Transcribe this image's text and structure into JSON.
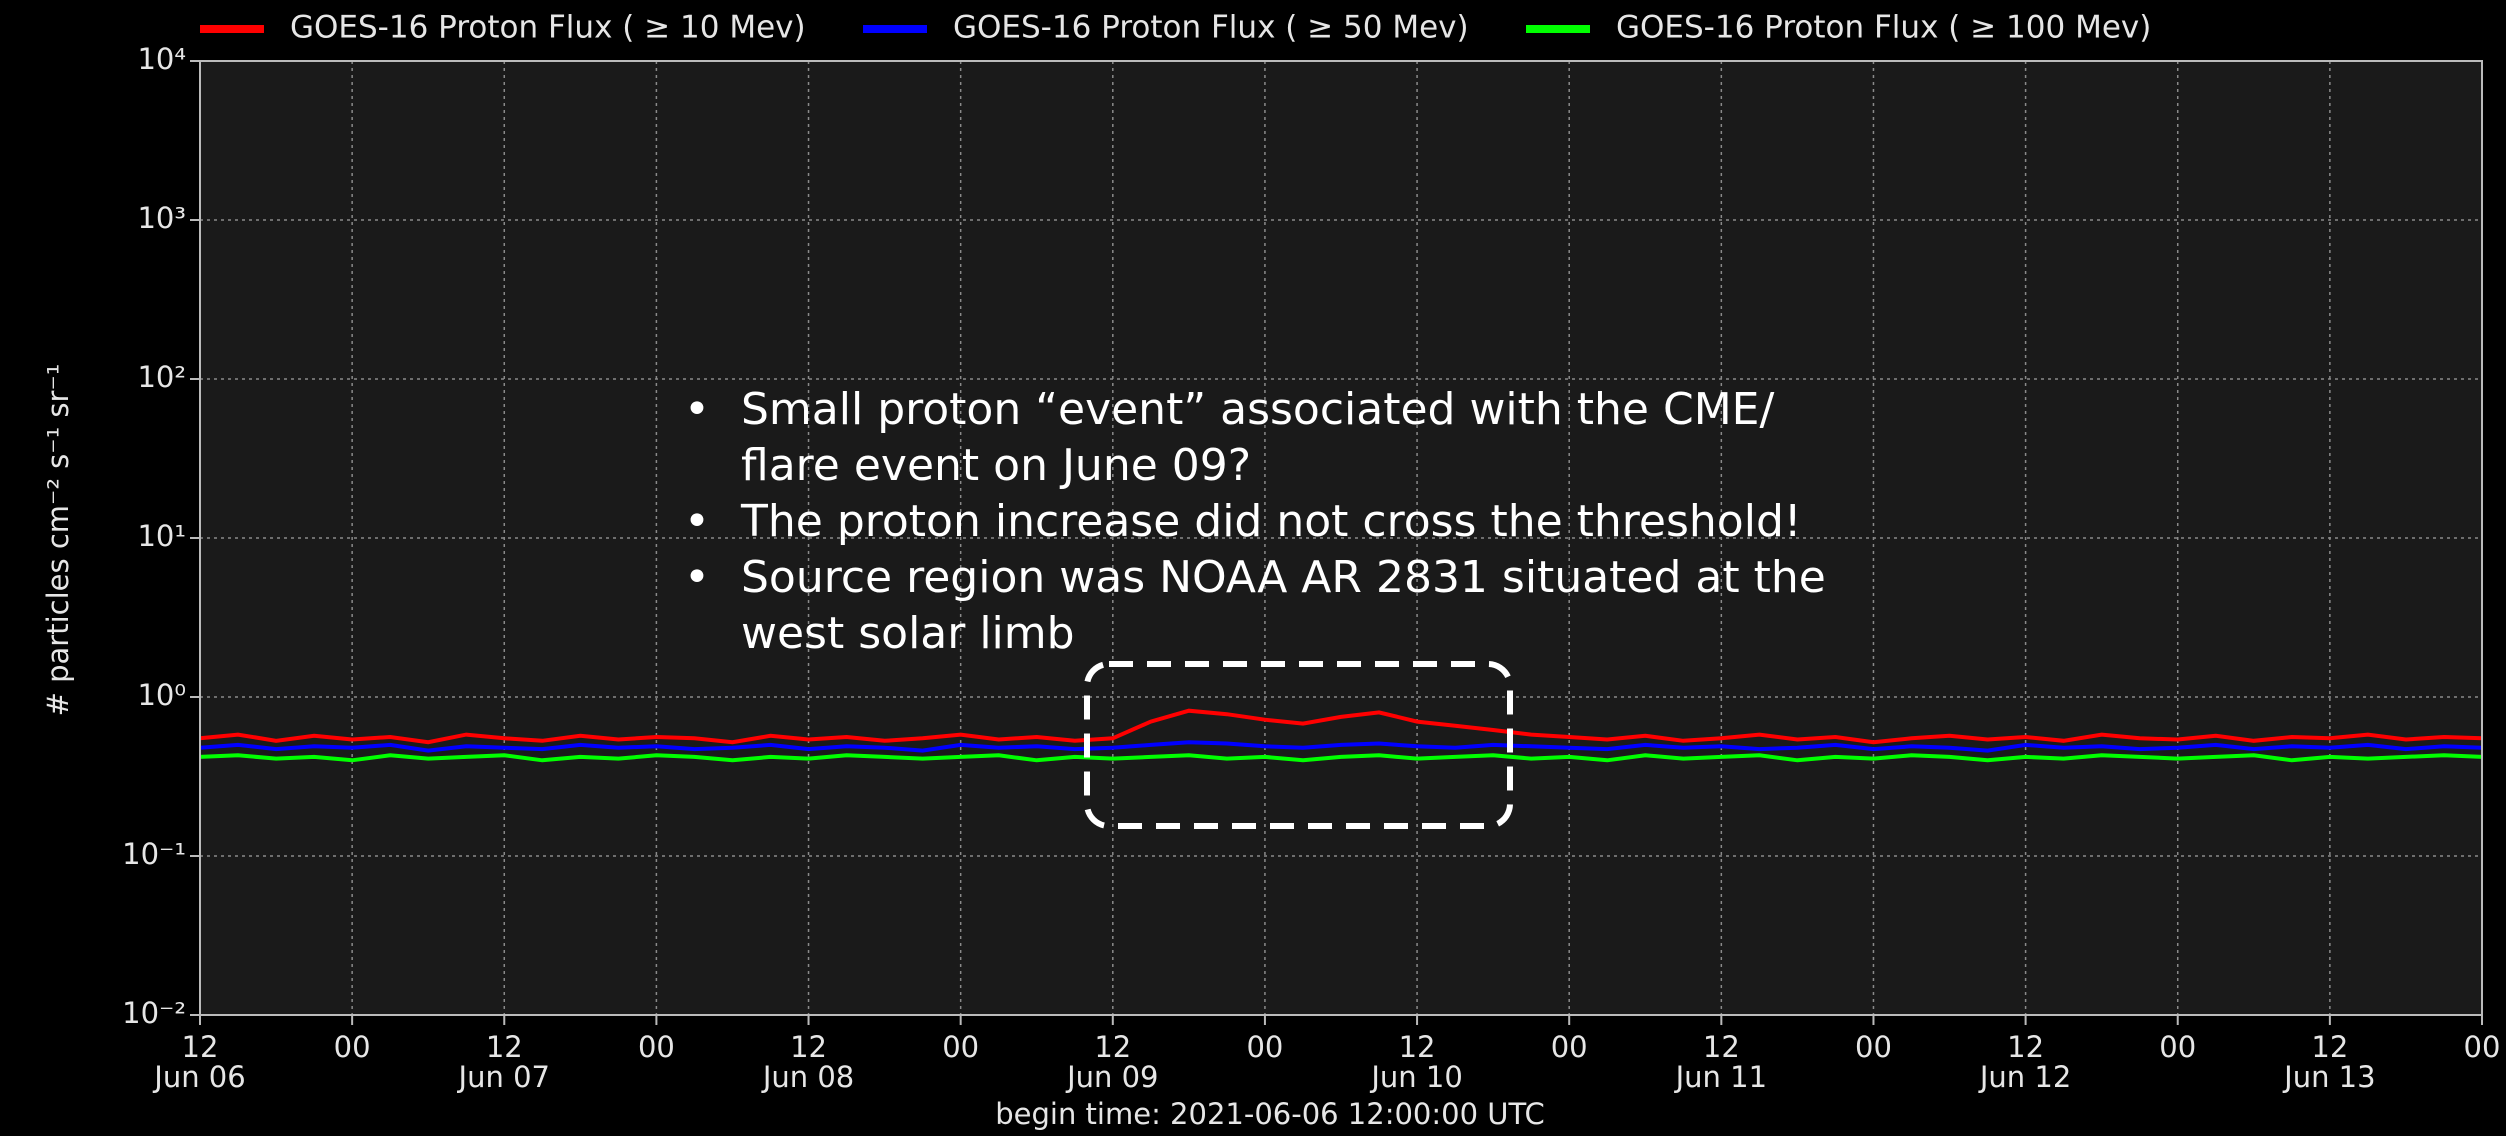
{
  "chart_data": {
    "type": "line",
    "ylabel": "# particles cm⁻² s⁻¹ sr⁻¹",
    "xlabel": "begin time: 2021-06-06 12:00:00 UTC",
    "log_y": true,
    "grid": true,
    "legend": "top",
    "ylim": [
      0.01,
      10000
    ],
    "yticks": [
      {
        "value": 10000,
        "label": "10⁴"
      },
      {
        "value": 1000,
        "label": "10³"
      },
      {
        "value": 100,
        "label": "10²"
      },
      {
        "value": 10,
        "label": "10¹"
      },
      {
        "value": 1,
        "label": "10⁰"
      },
      {
        "value": 0.1,
        "label": "10⁻¹"
      },
      {
        "value": 0.01,
        "label": "10⁻²"
      }
    ],
    "xlim": [
      "2021-06-06T12:00",
      "2021-06-14T00:00"
    ],
    "xticks": [
      {
        "value": "2021-06-06T12:00",
        "label": "12",
        "date": "Jun 06"
      },
      {
        "value": "2021-06-07T00:00",
        "label": "00"
      },
      {
        "value": "2021-06-07T12:00",
        "label": "12",
        "date": "Jun 07"
      },
      {
        "value": "2021-06-08T00:00",
        "label": "00"
      },
      {
        "value": "2021-06-08T12:00",
        "label": "12",
        "date": "Jun 08"
      },
      {
        "value": "2021-06-09T00:00",
        "label": "00"
      },
      {
        "value": "2021-06-09T12:00",
        "label": "12",
        "date": "Jun 09"
      },
      {
        "value": "2021-06-10T00:00",
        "label": "00"
      },
      {
        "value": "2021-06-10T12:00",
        "label": "12",
        "date": "Jun 10"
      },
      {
        "value": "2021-06-11T00:00",
        "label": "00"
      },
      {
        "value": "2021-06-11T12:00",
        "label": "12",
        "date": "Jun 11"
      },
      {
        "value": "2021-06-12T00:00",
        "label": "00"
      },
      {
        "value": "2021-06-12T12:00",
        "label": "12",
        "date": "Jun 12"
      },
      {
        "value": "2021-06-13T00:00",
        "label": "00"
      },
      {
        "value": "2021-06-13T12:00",
        "label": "12",
        "date": "Jun 13"
      },
      {
        "value": "2021-06-14T00:00",
        "label": "00"
      }
    ],
    "x": [
      "2021-06-06T12:00",
      "2021-06-06T15:00",
      "2021-06-06T18:00",
      "2021-06-06T21:00",
      "2021-06-07T00:00",
      "2021-06-07T03:00",
      "2021-06-07T06:00",
      "2021-06-07T09:00",
      "2021-06-07T12:00",
      "2021-06-07T15:00",
      "2021-06-07T18:00",
      "2021-06-07T21:00",
      "2021-06-08T00:00",
      "2021-06-08T03:00",
      "2021-06-08T06:00",
      "2021-06-08T09:00",
      "2021-06-08T12:00",
      "2021-06-08T15:00",
      "2021-06-08T18:00",
      "2021-06-08T21:00",
      "2021-06-09T00:00",
      "2021-06-09T03:00",
      "2021-06-09T06:00",
      "2021-06-09T09:00",
      "2021-06-09T12:00",
      "2021-06-09T15:00",
      "2021-06-09T18:00",
      "2021-06-09T21:00",
      "2021-06-10T00:00",
      "2021-06-10T03:00",
      "2021-06-10T06:00",
      "2021-06-10T09:00",
      "2021-06-10T12:00",
      "2021-06-10T15:00",
      "2021-06-10T18:00",
      "2021-06-10T21:00",
      "2021-06-11T00:00",
      "2021-06-11T03:00",
      "2021-06-11T06:00",
      "2021-06-11T09:00",
      "2021-06-11T12:00",
      "2021-06-11T15:00",
      "2021-06-11T18:00",
      "2021-06-11T21:00",
      "2021-06-12T00:00",
      "2021-06-12T03:00",
      "2021-06-12T06:00",
      "2021-06-12T09:00",
      "2021-06-12T12:00",
      "2021-06-12T15:00",
      "2021-06-12T18:00",
      "2021-06-12T21:00",
      "2021-06-13T00:00",
      "2021-06-13T03:00",
      "2021-06-13T06:00",
      "2021-06-13T09:00",
      "2021-06-13T12:00",
      "2021-06-13T15:00",
      "2021-06-13T18:00",
      "2021-06-13T21:00",
      "2021-06-14T00:00"
    ],
    "series": [
      {
        "name": "GOES-16 Proton Flux ( ≥ 10 Mev)",
        "color": "#ff0000",
        "values": [
          0.55,
          0.58,
          0.53,
          0.57,
          0.54,
          0.56,
          0.52,
          0.58,
          0.55,
          0.53,
          0.57,
          0.54,
          0.56,
          0.55,
          0.52,
          0.57,
          0.54,
          0.56,
          0.53,
          0.55,
          0.58,
          0.54,
          0.56,
          0.53,
          0.55,
          0.7,
          0.82,
          0.78,
          0.72,
          0.68,
          0.75,
          0.8,
          0.7,
          0.66,
          0.62,
          0.58,
          0.56,
          0.54,
          0.57,
          0.53,
          0.55,
          0.58,
          0.54,
          0.56,
          0.52,
          0.55,
          0.57,
          0.54,
          0.56,
          0.53,
          0.58,
          0.55,
          0.54,
          0.57,
          0.53,
          0.56,
          0.55,
          0.58,
          0.54,
          0.56,
          0.55
        ]
      },
      {
        "name": "GOES-16 Proton Flux ( ≥ 50 Mev)",
        "color": "#0000ff",
        "values": [
          0.48,
          0.5,
          0.47,
          0.49,
          0.48,
          0.5,
          0.46,
          0.49,
          0.48,
          0.47,
          0.5,
          0.48,
          0.49,
          0.47,
          0.48,
          0.5,
          0.47,
          0.49,
          0.48,
          0.46,
          0.5,
          0.48,
          0.49,
          0.47,
          0.48,
          0.5,
          0.52,
          0.51,
          0.49,
          0.48,
          0.5,
          0.51,
          0.49,
          0.48,
          0.5,
          0.49,
          0.48,
          0.47,
          0.5,
          0.48,
          0.49,
          0.47,
          0.48,
          0.5,
          0.47,
          0.49,
          0.48,
          0.46,
          0.5,
          0.48,
          0.49,
          0.47,
          0.48,
          0.5,
          0.47,
          0.49,
          0.48,
          0.5,
          0.47,
          0.49,
          0.48
        ]
      },
      {
        "name": "GOES-16 Proton Flux ( ≥ 100 Mev)",
        "color": "#00ff00",
        "values": [
          0.42,
          0.43,
          0.41,
          0.42,
          0.4,
          0.43,
          0.41,
          0.42,
          0.43,
          0.4,
          0.42,
          0.41,
          0.43,
          0.42,
          0.4,
          0.42,
          0.41,
          0.43,
          0.42,
          0.41,
          0.42,
          0.43,
          0.4,
          0.42,
          0.41,
          0.42,
          0.43,
          0.41,
          0.42,
          0.4,
          0.42,
          0.43,
          0.41,
          0.42,
          0.43,
          0.41,
          0.42,
          0.4,
          0.43,
          0.41,
          0.42,
          0.43,
          0.4,
          0.42,
          0.41,
          0.43,
          0.42,
          0.4,
          0.42,
          0.41,
          0.43,
          0.42,
          0.41,
          0.42,
          0.43,
          0.4,
          0.42,
          0.41,
          0.42,
          0.43,
          0.42
        ]
      }
    ],
    "annotation": [
      [
        "Small proton “event” associated with the CME/",
        "flare event on June 09?"
      ],
      [
        "The proton increase did not cross the threshold!"
      ],
      [
        "Source region was NOAA AR 2831 situated at the",
        "west solar limb"
      ]
    ],
    "bullet": "•"
  }
}
